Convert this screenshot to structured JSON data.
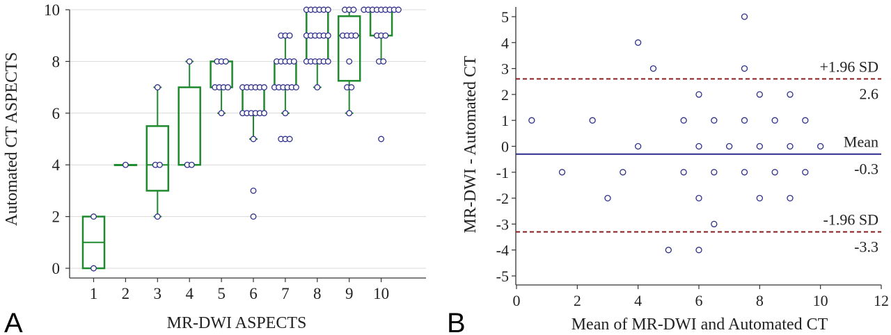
{
  "chart_data": [
    {
      "type": "box",
      "panel_label": "A",
      "xlabel": "MR-DWI ASPECTS",
      "ylabel": "Automated CT ASPECTS",
      "ylim": [
        0,
        10
      ],
      "yticks": [
        0,
        2,
        4,
        6,
        8,
        10
      ],
      "categories": [
        "1",
        "2",
        "3",
        "4",
        "5",
        "6",
        "7",
        "8",
        "9",
        "10"
      ],
      "grid": "horizontal",
      "box_color": "#1e8a2e",
      "point_color": "#2e2e8a",
      "boxes": [
        {
          "x": 1,
          "q1": 0,
          "median": 1,
          "q3": 2,
          "whisker_low": 0,
          "whisker_high": 2,
          "outliers": []
        },
        {
          "x": 2,
          "q1": 4,
          "median": 4,
          "q3": 4,
          "whisker_low": 4,
          "whisker_high": 4,
          "outliers": []
        },
        {
          "x": 3,
          "q1": 3,
          "median": 4,
          "q3": 5.5,
          "whisker_low": 2,
          "whisker_high": 7,
          "outliers": []
        },
        {
          "x": 4,
          "q1": 4,
          "median": 4,
          "q3": 7,
          "whisker_low": 4,
          "whisker_high": 8,
          "outliers": []
        },
        {
          "x": 5,
          "q1": 7,
          "median": 7,
          "q3": 8,
          "whisker_low": 6,
          "whisker_high": 8,
          "outliers": []
        },
        {
          "x": 6,
          "q1": 6,
          "median": 7,
          "q3": 7,
          "whisker_low": 5,
          "whisker_high": 7,
          "outliers": [
            3,
            2
          ]
        },
        {
          "x": 7,
          "q1": 7,
          "median": 7,
          "q3": 8,
          "whisker_low": 6,
          "whisker_high": 9,
          "outliers": [
            5
          ]
        },
        {
          "x": 8,
          "q1": 8,
          "median": 9,
          "q3": 10,
          "whisker_low": 7,
          "whisker_high": 10,
          "outliers": []
        },
        {
          "x": 9,
          "q1": 7.25,
          "median": 9,
          "q3": 9.75,
          "whisker_low": 6,
          "whisker_high": 10,
          "outliers": []
        },
        {
          "x": 10,
          "q1": 9,
          "median": 10,
          "q3": 10,
          "whisker_low": 8,
          "whisker_high": 10,
          "outliers": [
            5
          ]
        }
      ],
      "points": [
        {
          "x": 1,
          "values": [
            2,
            0
          ]
        },
        {
          "x": 2,
          "values": [
            4
          ]
        },
        {
          "x": 3,
          "values": [
            7,
            4,
            4,
            2
          ]
        },
        {
          "x": 4,
          "values": [
            8,
            4,
            4
          ]
        },
        {
          "x": 5,
          "values": [
            8,
            8,
            8,
            7,
            7,
            7,
            7,
            6
          ]
        },
        {
          "x": 6,
          "values": [
            7,
            7,
            7,
            7,
            7,
            7,
            6,
            6,
            6,
            6,
            6,
            6,
            5,
            3,
            2
          ]
        },
        {
          "x": 7,
          "values": [
            9,
            9,
            9,
            8,
            8,
            8,
            8,
            8,
            7,
            7,
            7,
            7,
            7,
            7,
            6,
            5,
            5,
            5
          ]
        },
        {
          "x": 8,
          "values": [
            10,
            10,
            10,
            10,
            10,
            10,
            9,
            9,
            9,
            9,
            9,
            9,
            8,
            8,
            8,
            8,
            8,
            8,
            7
          ]
        },
        {
          "x": 9,
          "values": [
            10,
            10,
            10,
            9,
            9,
            9,
            9,
            8,
            7,
            7,
            6
          ]
        },
        {
          "x": 10,
          "values": [
            10,
            10,
            10,
            10,
            10,
            10,
            10,
            10,
            10,
            9,
            9,
            9,
            8,
            8,
            5
          ]
        }
      ]
    },
    {
      "type": "scatter",
      "panel_label": "B",
      "xlabel": "Mean of MR-DWI and Automated CT",
      "ylabel": "MR-DWI - Automated CT",
      "xlim": [
        0,
        12
      ],
      "ylim": [
        -5,
        5
      ],
      "xticks": [
        0,
        2,
        4,
        6,
        8,
        10,
        12
      ],
      "yticks": [
        -5,
        -4,
        -3,
        -2,
        -1,
        0,
        1,
        2,
        3,
        4,
        5
      ],
      "point_color": "#2e2e8a",
      "points": [
        {
          "x": 0.5,
          "y": 1
        },
        {
          "x": 1.5,
          "y": -1
        },
        {
          "x": 2.5,
          "y": 1
        },
        {
          "x": 3,
          "y": -2
        },
        {
          "x": 3.5,
          "y": -1
        },
        {
          "x": 4,
          "y": 4
        },
        {
          "x": 4,
          "y": 0
        },
        {
          "x": 4.5,
          "y": 3
        },
        {
          "x": 5,
          "y": -4
        },
        {
          "x": 5.5,
          "y": 1
        },
        {
          "x": 5.5,
          "y": -1
        },
        {
          "x": 6,
          "y": 2
        },
        {
          "x": 6,
          "y": 0
        },
        {
          "x": 6,
          "y": -2
        },
        {
          "x": 6,
          "y": -4
        },
        {
          "x": 6.5,
          "y": 1
        },
        {
          "x": 6.5,
          "y": -1
        },
        {
          "x": 6.5,
          "y": -3
        },
        {
          "x": 7,
          "y": 0
        },
        {
          "x": 7.5,
          "y": 5
        },
        {
          "x": 7.5,
          "y": 3
        },
        {
          "x": 7.5,
          "y": 1
        },
        {
          "x": 7.5,
          "y": -1
        },
        {
          "x": 8,
          "y": 2
        },
        {
          "x": 8,
          "y": 0
        },
        {
          "x": 8,
          "y": -2
        },
        {
          "x": 8.5,
          "y": 1
        },
        {
          "x": 8.5,
          "y": -1
        },
        {
          "x": 9,
          "y": 2
        },
        {
          "x": 9,
          "y": 0
        },
        {
          "x": 9,
          "y": -2
        },
        {
          "x": 9.5,
          "y": 1
        },
        {
          "x": 9.5,
          "y": -1
        },
        {
          "x": 10,
          "y": 0
        }
      ],
      "reference_lines": [
        {
          "label": "+1.96 SD",
          "value_label": "2.6",
          "y": 2.6,
          "style": "dashed",
          "color": "#8b1a1a"
        },
        {
          "label": "Mean",
          "value_label": "-0.3",
          "y": -0.3,
          "style": "solid",
          "color": "#2a2a8a"
        },
        {
          "label": "-1.96 SD",
          "value_label": "-3.3",
          "y": -3.3,
          "style": "dashed",
          "color": "#8b1a1a"
        }
      ]
    }
  ]
}
